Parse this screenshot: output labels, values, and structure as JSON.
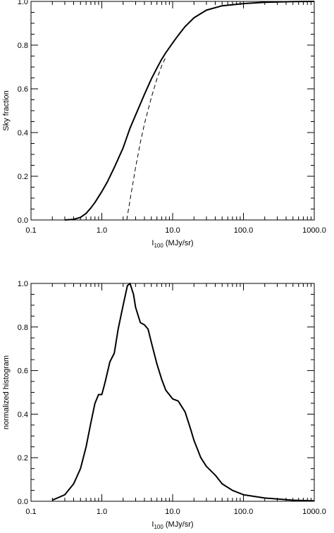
{
  "chart_data": [
    {
      "type": "line",
      "xscale": "log",
      "xlim": [
        0.1,
        1000.0
      ],
      "ylim": [
        0.0,
        1.0
      ],
      "xlabel_main": "I",
      "xlabel_sub": "100",
      "xlabel_unit": " (MJy/sr)",
      "ylabel": "Sky fraction",
      "xticks": [
        "0.1",
        "1.0",
        "10.0",
        "100.0",
        "1000.0"
      ],
      "yticks": [
        "0.0",
        "0.2",
        "0.4",
        "0.6",
        "0.8",
        "1.0"
      ],
      "grid": false,
      "series": [
        {
          "style": "solid",
          "x": [
            0.3,
            0.4,
            0.5,
            0.6,
            0.7,
            0.8,
            1.0,
            1.2,
            1.5,
            2.0,
            2.5,
            3.0,
            4.0,
            5.0,
            6.0,
            7.0,
            8.0,
            10.0,
            12.0,
            15.0,
            20.0,
            30.0,
            50.0,
            100.0,
            200.0,
            500.0,
            1000.0
          ],
          "y": [
            0.0,
            0.003,
            0.012,
            0.03,
            0.055,
            0.08,
            0.13,
            0.175,
            0.24,
            0.33,
            0.42,
            0.48,
            0.575,
            0.645,
            0.695,
            0.735,
            0.765,
            0.81,
            0.845,
            0.885,
            0.925,
            0.96,
            0.98,
            0.99,
            0.996,
            0.999,
            1.0
          ]
        },
        {
          "style": "dashed",
          "x": [
            2.25,
            2.5,
            3.0,
            3.5,
            4.0,
            5.0,
            6.0,
            7.0,
            8.0
          ],
          "y": [
            0.0,
            0.09,
            0.24,
            0.355,
            0.44,
            0.56,
            0.645,
            0.705,
            0.745
          ]
        }
      ]
    },
    {
      "type": "line",
      "xscale": "log",
      "xlim": [
        0.1,
        1000.0
      ],
      "ylim": [
        0.0,
        1.0
      ],
      "xlabel_main": "I",
      "xlabel_sub": "100",
      "xlabel_unit": " (MJy/sr)",
      "ylabel": "normalized histogram",
      "xticks": [
        "0.1",
        "1.0",
        "10.0",
        "100.0",
        "1000.0"
      ],
      "yticks": [
        "0.0",
        "0.2",
        "0.4",
        "0.6",
        "0.8",
        "1.0"
      ],
      "grid": false,
      "series": [
        {
          "style": "solid",
          "x": [
            0.2,
            0.3,
            0.4,
            0.5,
            0.6,
            0.7,
            0.8,
            0.9,
            1.0,
            1.1,
            1.3,
            1.5,
            1.7,
            2.0,
            2.3,
            2.5,
            2.8,
            3.0,
            3.5,
            4.0,
            4.5,
            5.0,
            6.0,
            7.0,
            8.0,
            10.0,
            12.0,
            15.0,
            18.0,
            20.0,
            25.0,
            30.0,
            40.0,
            50.0,
            70.0,
            100.0,
            200.0,
            500.0,
            1000.0
          ],
          "y": [
            0.005,
            0.03,
            0.08,
            0.15,
            0.25,
            0.36,
            0.45,
            0.49,
            0.49,
            0.54,
            0.64,
            0.68,
            0.79,
            0.9,
            0.99,
            1.0,
            0.95,
            0.89,
            0.82,
            0.81,
            0.79,
            0.73,
            0.63,
            0.56,
            0.51,
            0.47,
            0.46,
            0.41,
            0.33,
            0.28,
            0.2,
            0.16,
            0.12,
            0.08,
            0.05,
            0.03,
            0.015,
            0.005,
            0.002
          ]
        }
      ]
    }
  ]
}
